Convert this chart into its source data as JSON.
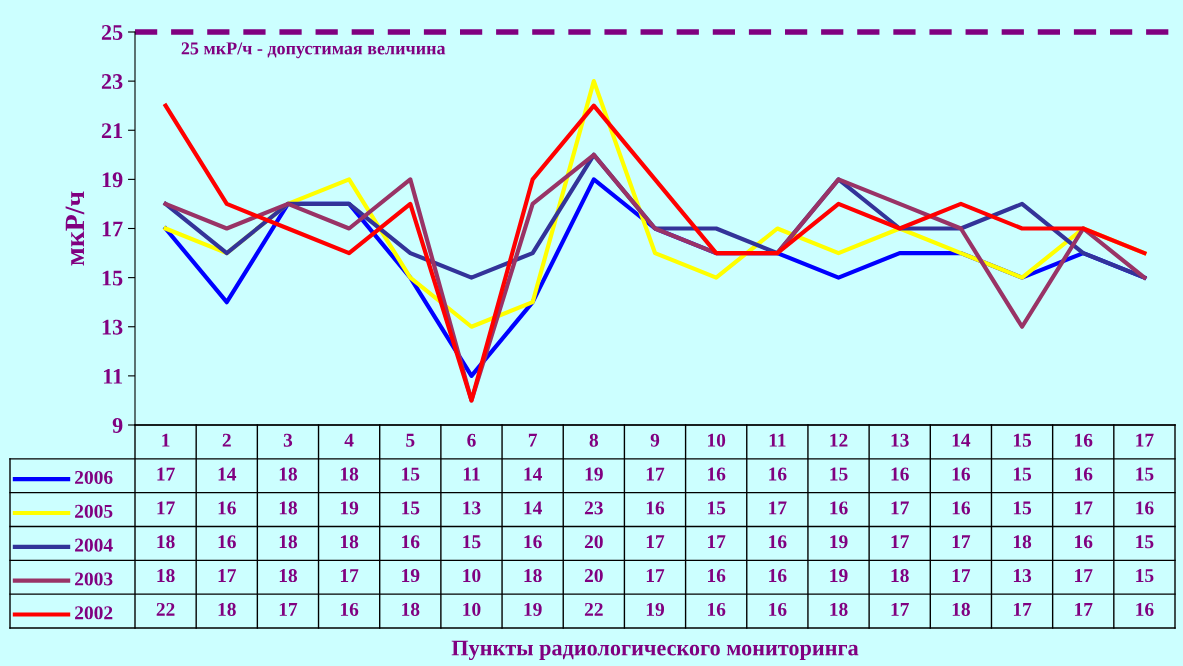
{
  "chart_data": {
    "type": "line",
    "ylabel": "мкР/ч",
    "annotations": [
      "Пункты радиологического мониторинга"
    ],
    "categories": [
      "1",
      "2",
      "3",
      "4",
      "5",
      "6",
      "7",
      "8",
      "9",
      "10",
      "11",
      "12",
      "13",
      "14",
      "15",
      "16",
      "17"
    ],
    "series": [
      {
        "name": "2006",
        "color": "#0000ff",
        "values": [
          17,
          14,
          18,
          18,
          15,
          11,
          14,
          19,
          17,
          16,
          16,
          15,
          16,
          16,
          15,
          16,
          15
        ]
      },
      {
        "name": "2005",
        "color": "#ffff00",
        "values": [
          17,
          16,
          18,
          19,
          15,
          13,
          14,
          23,
          16,
          15,
          17,
          16,
          17,
          16,
          15,
          17,
          16
        ]
      },
      {
        "name": "2004",
        "color": "#333399",
        "values": [
          18,
          16,
          18,
          18,
          16,
          15,
          16,
          20,
          17,
          17,
          16,
          19,
          17,
          17,
          18,
          16,
          15
        ]
      },
      {
        "name": "2003",
        "color": "#993366",
        "values": [
          18,
          17,
          18,
          17,
          19,
          10,
          18,
          20,
          17,
          16,
          16,
          19,
          18,
          17,
          13,
          17,
          15
        ]
      },
      {
        "name": "2002",
        "color": "#ff0000",
        "values": [
          22,
          18,
          17,
          16,
          18,
          10,
          19,
          22,
          19,
          16,
          16,
          18,
          17,
          18,
          17,
          17,
          16
        ]
      }
    ],
    "ylim": [
      9,
      25
    ],
    "yticks": [
      9,
      11,
      13,
      15,
      17,
      19,
      21,
      23,
      25
    ],
    "ref_lines": [
      {
        "axis": "y",
        "value": 25,
        "label": "25 мкР/ч - допустимая величина",
        "color": "#800080",
        "line_style": "dashed"
      }
    ],
    "data_labels": true,
    "legend": "bottom",
    "grid": false,
    "marker": "none",
    "line_style": "solid"
  }
}
